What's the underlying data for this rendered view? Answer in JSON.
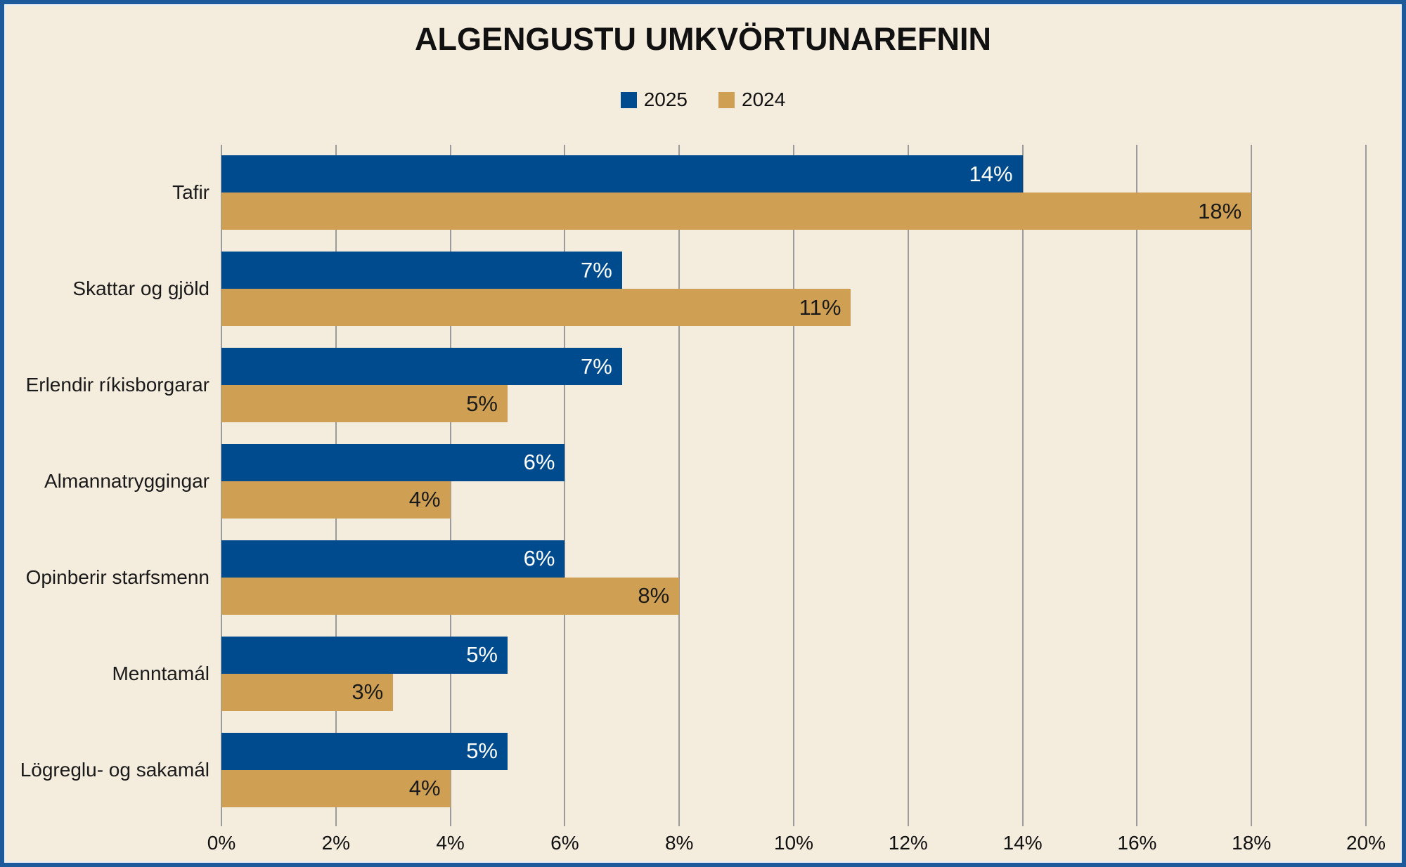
{
  "title": "ALGENGUSTU UMKVÖRTUNAREFNIN",
  "legend": {
    "items": [
      {
        "label": "2025",
        "color": "#004B8D"
      },
      {
        "label": "2024",
        "color": "#CFA053"
      }
    ]
  },
  "colors": {
    "background": "#F4ECDD",
    "frame_border": "#1D5A9B",
    "gridline": "#9B9B9B",
    "series_2025": "#004B8D",
    "series_2024": "#CFA053",
    "value_label_on_blue": "#FFFFFF",
    "value_label_on_tan": "#1A1A1A",
    "text": "#111111"
  },
  "chart_data": {
    "type": "bar",
    "orientation": "horizontal",
    "title": "ALGENGUSTU UMKVÖRTUNAREFNIN",
    "categories": [
      "Tafir",
      "Skattar og gjöld",
      "Erlendir ríkisborgarar",
      "Almannatryggingar",
      "Opinberir starfsmenn",
      "Menntamál",
      "Lögreglu- og sakamál"
    ],
    "series": [
      {
        "name": "2025",
        "color": "#004B8D",
        "label_color": "#FFFFFF",
        "values": [
          14,
          7,
          7,
          6,
          6,
          5,
          5
        ],
        "labels": [
          "14%",
          "7%",
          "7%",
          "6%",
          "6%",
          "5%",
          "5%"
        ]
      },
      {
        "name": "2024",
        "color": "#CFA053",
        "label_color": "#1A1A1A",
        "values": [
          18,
          11,
          5,
          4,
          8,
          3,
          4
        ],
        "labels": [
          "18%",
          "11%",
          "5%",
          "4%",
          "8%",
          "3%",
          "4%"
        ]
      }
    ],
    "xlim": [
      0,
      20
    ],
    "x_tick_step": 2,
    "x_tick_labels": [
      "0%",
      "2%",
      "4%",
      "6%",
      "8%",
      "10%",
      "12%",
      "14%",
      "16%",
      "18%",
      "20%"
    ],
    "grid": true,
    "legend_position": "top-center",
    "value_labels": "inside-end"
  }
}
